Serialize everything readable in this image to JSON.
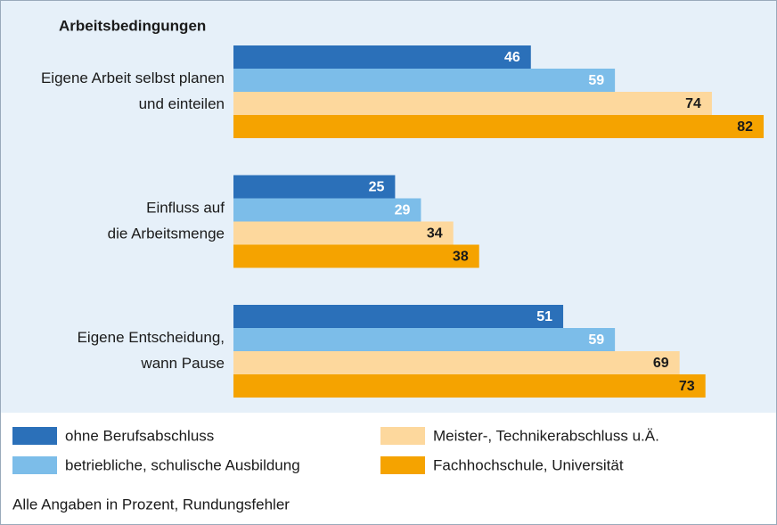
{
  "chart_data": {
    "type": "hbar",
    "title": "Arbeitsbedingungen",
    "categories": [
      [
        "Eigene Arbeit selbst planen",
        "und einteilen"
      ],
      [
        "Einfluss auf",
        "die Arbeitsmenge"
      ],
      [
        "Eigene Entscheidung,",
        "wann Pause"
      ]
    ],
    "series": [
      {
        "name": "ohne Berufsabschluss",
        "color": "#2b70b9",
        "values": [
          46,
          25,
          51
        ]
      },
      {
        "name": "betriebliche, schulische Ausbildung",
        "color": "#7cbde9",
        "values": [
          59,
          29,
          59
        ]
      },
      {
        "name": "Meister-, Technikerabschluss u.Ä.",
        "color": "#fdd89d",
        "values": [
          74,
          34,
          69
        ]
      },
      {
        "name": "Fachhochschule, Universität",
        "color": "#f5a300",
        "values": [
          82,
          38,
          73
        ]
      }
    ],
    "note": "Alle Angaben in Prozent, Rundungsfehler"
  }
}
